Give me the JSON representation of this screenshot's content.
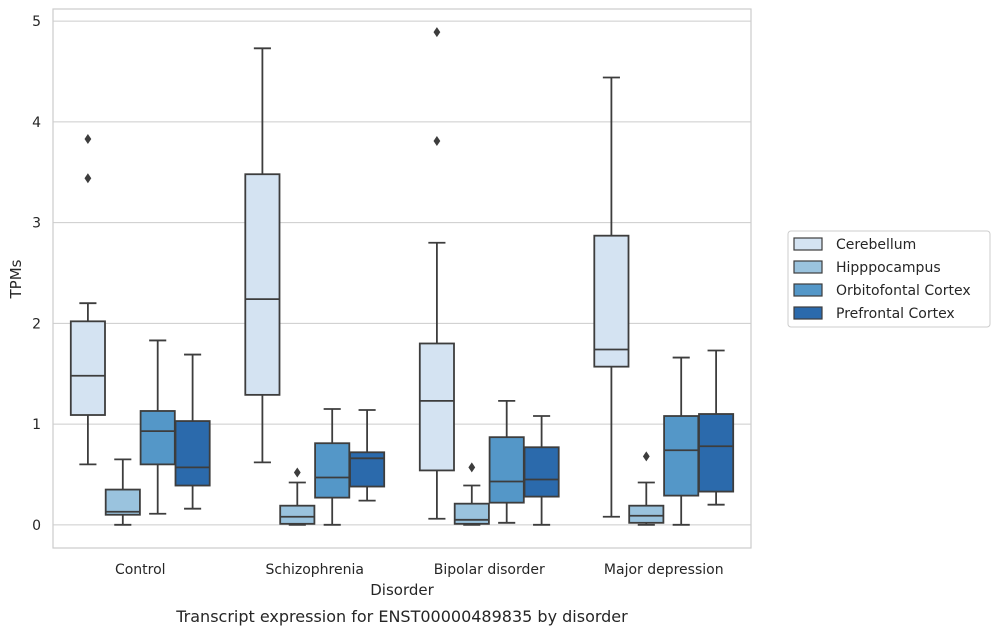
{
  "chart_data": {
    "type": "box",
    "title": "",
    "caption": "Transcript expression for ENST00000489835 by disorder",
    "xlabel": "Disorder",
    "ylabel": "TPMs",
    "ylim": [
      -0.23,
      5.12
    ],
    "yticks": [
      0,
      1,
      2,
      3,
      4,
      5
    ],
    "grid": "horizontal",
    "legend_position": "right",
    "categories": [
      "Control",
      "Schizophrenia",
      "Bipolar disorder",
      "Major depression"
    ],
    "series": [
      {
        "name": "Cerebellum",
        "color": "#d4e3f2",
        "boxes": [
          {
            "whisker_low": 0.6,
            "q1": 1.09,
            "median": 1.48,
            "q3": 2.02,
            "whisker_high": 2.2,
            "outliers": [
              3.44,
              3.83
            ]
          },
          {
            "whisker_low": 0.62,
            "q1": 1.29,
            "median": 2.24,
            "q3": 3.48,
            "whisker_high": 4.73,
            "outliers": []
          },
          {
            "whisker_low": 0.06,
            "q1": 0.54,
            "median": 1.23,
            "q3": 1.8,
            "whisker_high": 2.8,
            "outliers": [
              3.81,
              4.89
            ]
          },
          {
            "whisker_low": 0.08,
            "q1": 1.57,
            "median": 1.74,
            "q3": 2.87,
            "whisker_high": 4.44,
            "outliers": []
          }
        ]
      },
      {
        "name": "Hipppocampus",
        "color": "#9ac3de",
        "boxes": [
          {
            "whisker_low": 0.0,
            "q1": 0.1,
            "median": 0.13,
            "q3": 0.35,
            "whisker_high": 0.65,
            "outliers": []
          },
          {
            "whisker_low": 0.0,
            "q1": 0.01,
            "median": 0.08,
            "q3": 0.19,
            "whisker_high": 0.42,
            "outliers": [
              0.52
            ]
          },
          {
            "whisker_low": 0.0,
            "q1": 0.01,
            "median": 0.05,
            "q3": 0.21,
            "whisker_high": 0.39,
            "outliers": [
              0.57
            ]
          },
          {
            "whisker_low": 0.0,
            "q1": 0.02,
            "median": 0.09,
            "q3": 0.19,
            "whisker_high": 0.42,
            "outliers": [
              0.68
            ]
          }
        ]
      },
      {
        "name": "Orbitofontal Cortex",
        "color": "#5497c8",
        "boxes": [
          {
            "whisker_low": 0.11,
            "q1": 0.6,
            "median": 0.93,
            "q3": 1.13,
            "whisker_high": 1.83,
            "outliers": []
          },
          {
            "whisker_low": 0.0,
            "q1": 0.27,
            "median": 0.47,
            "q3": 0.81,
            "whisker_high": 1.15,
            "outliers": []
          },
          {
            "whisker_low": 0.02,
            "q1": 0.22,
            "median": 0.43,
            "q3": 0.87,
            "whisker_high": 1.23,
            "outliers": []
          },
          {
            "whisker_low": 0.0,
            "q1": 0.29,
            "median": 0.74,
            "q3": 1.08,
            "whisker_high": 1.66,
            "outliers": []
          }
        ]
      },
      {
        "name": "Prefrontal Cortex",
        "color": "#2b6aac",
        "boxes": [
          {
            "whisker_low": 0.16,
            "q1": 0.39,
            "median": 0.57,
            "q3": 1.03,
            "whisker_high": 1.69,
            "outliers": []
          },
          {
            "whisker_low": 0.24,
            "q1": 0.38,
            "median": 0.66,
            "q3": 0.72,
            "whisker_high": 1.14,
            "outliers": []
          },
          {
            "whisker_low": 0.0,
            "q1": 0.28,
            "median": 0.45,
            "q3": 0.77,
            "whisker_high": 1.08,
            "outliers": []
          },
          {
            "whisker_low": 0.2,
            "q1": 0.33,
            "median": 0.78,
            "q3": 1.1,
            "whisker_high": 1.73,
            "outliers": []
          }
        ]
      }
    ]
  }
}
